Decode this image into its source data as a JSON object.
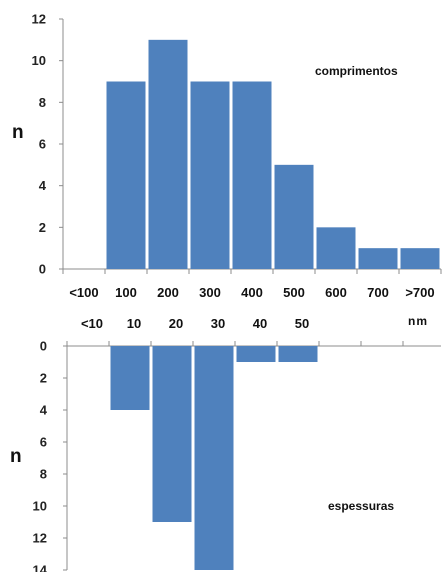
{
  "chart_data": [
    {
      "type": "bar",
      "name": "comprimentos",
      "ylabel": "n",
      "annotation": "comprimentos",
      "unit": "nm",
      "ylim": [
        0,
        12
      ],
      "yticks": [
        "0",
        "2",
        "4",
        "6",
        "8",
        "10",
        "12"
      ],
      "categories": [
        "<100",
        "100",
        "200",
        "300",
        "400",
        "500",
        "600",
        "700",
        ">700"
      ],
      "values": [
        0,
        9,
        11,
        9,
        9,
        5,
        2,
        1,
        1
      ],
      "color": "#4F81BD"
    },
    {
      "type": "bar",
      "name": "espessuras",
      "orientation": "downward",
      "ylabel": "n",
      "annotation": "espessuras",
      "ylim": [
        0,
        14
      ],
      "yticks": [
        "0",
        "2",
        "4",
        "6",
        "8",
        "10",
        "12",
        "14"
      ],
      "categories": [
        "<10",
        "10",
        "20",
        "30",
        "40",
        "50"
      ],
      "values": [
        0,
        4,
        11,
        14,
        1,
        1
      ],
      "color": "#4F81BD"
    }
  ]
}
